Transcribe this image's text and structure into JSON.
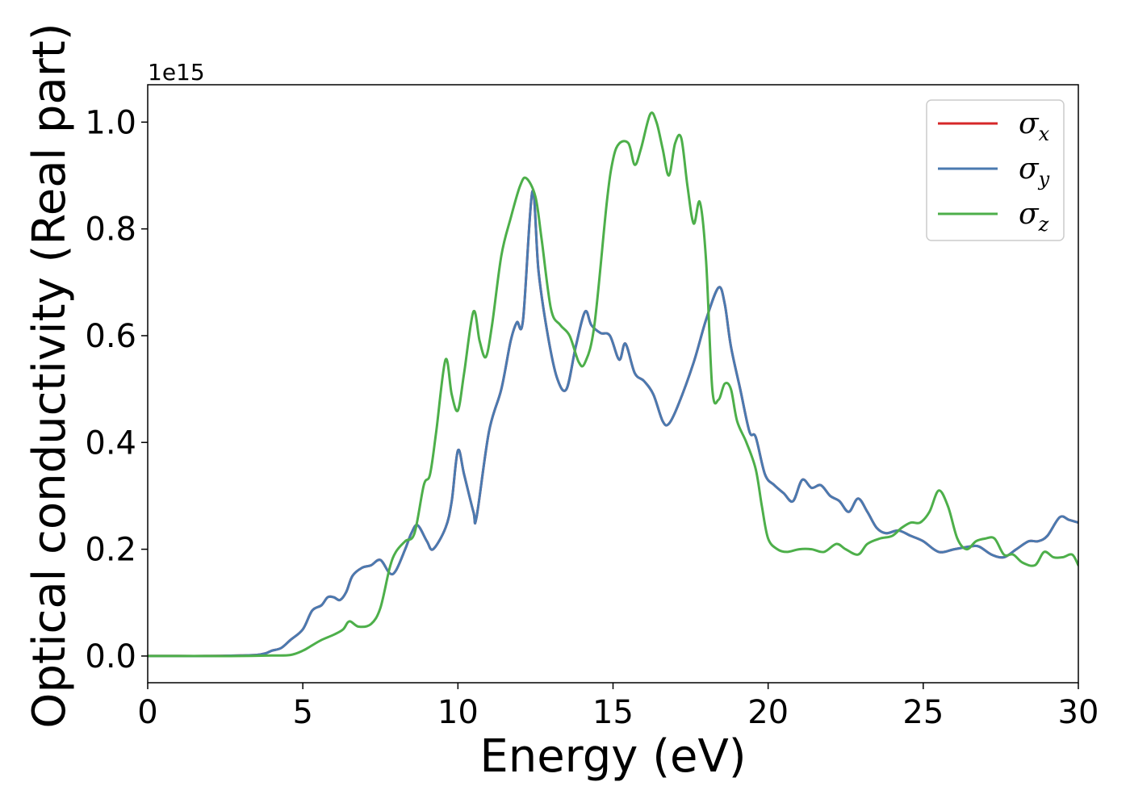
{
  "chart_data": {
    "type": "line",
    "title": "",
    "xlabel": "Energy (eV)",
    "ylabel": "Optical conductivity (Real part)",
    "y_offset_text": "1e15",
    "xlim": [
      0,
      30
    ],
    "ylim": [
      -0.05,
      1.07
    ],
    "x_ticks": [
      0,
      5,
      10,
      15,
      20,
      25,
      30
    ],
    "x_tick_labels": [
      "0",
      "5",
      "10",
      "15",
      "20",
      "25",
      "30"
    ],
    "y_ticks": [
      0.0,
      0.2,
      0.4,
      0.6,
      0.8,
      1.0
    ],
    "y_tick_labels": [
      "0.0",
      "0.2",
      "0.4",
      "0.6",
      "0.8",
      "1.0"
    ],
    "grid": false,
    "legend_position": "top-right",
    "series": [
      {
        "name": "σ",
        "subscript": "x",
        "color": "#d62728",
        "x": [
          0,
          1,
          2,
          3,
          3.5,
          3.8,
          4.0,
          4.3,
          4.6,
          5.0,
          5.3,
          5.6,
          5.8,
          6.0,
          6.2,
          6.4,
          6.6,
          6.9,
          7.2,
          7.5,
          7.8,
          8.0,
          8.3,
          8.5,
          8.7,
          9.0,
          9.2,
          9.6,
          9.8,
          10.0,
          10.2,
          10.5,
          10.6,
          11.0,
          11.4,
          11.7,
          11.9,
          12.1,
          12.4,
          12.6,
          12.9,
          13.2,
          13.5,
          13.8,
          14.1,
          14.3,
          14.6,
          14.9,
          15.2,
          15.4,
          15.7,
          16.0,
          16.3,
          16.6,
          16.8,
          17.1,
          17.6,
          18.0,
          18.4,
          18.6,
          18.8,
          19.1,
          19.4,
          19.6,
          19.9,
          20.2,
          20.5,
          20.8,
          21.1,
          21.4,
          21.7,
          22.0,
          22.3,
          22.6,
          22.9,
          23.2,
          23.5,
          23.8,
          24.2,
          24.6,
          25.0,
          25.5,
          26.0,
          26.5,
          26.8,
          27.2,
          27.6,
          28.0,
          28.4,
          28.7,
          29.0,
          29.4,
          29.7,
          30.0
        ],
        "y": [
          0,
          0,
          0,
          0.001,
          0.002,
          0.005,
          0.01,
          0.015,
          0.03,
          0.05,
          0.085,
          0.095,
          0.11,
          0.11,
          0.105,
          0.12,
          0.15,
          0.165,
          0.17,
          0.18,
          0.155,
          0.16,
          0.2,
          0.23,
          0.245,
          0.215,
          0.2,
          0.24,
          0.29,
          0.385,
          0.34,
          0.27,
          0.26,
          0.42,
          0.5,
          0.59,
          0.625,
          0.63,
          0.87,
          0.72,
          0.6,
          0.52,
          0.5,
          0.58,
          0.645,
          0.62,
          0.605,
          0.6,
          0.555,
          0.585,
          0.53,
          0.515,
          0.49,
          0.44,
          0.435,
          0.47,
          0.55,
          0.63,
          0.69,
          0.66,
          0.58,
          0.5,
          0.42,
          0.41,
          0.34,
          0.32,
          0.305,
          0.29,
          0.33,
          0.315,
          0.32,
          0.3,
          0.29,
          0.27,
          0.295,
          0.27,
          0.24,
          0.23,
          0.235,
          0.225,
          0.215,
          0.195,
          0.2,
          0.205,
          0.205,
          0.19,
          0.185,
          0.2,
          0.215,
          0.215,
          0.225,
          0.26,
          0.255,
          0.25
        ]
      },
      {
        "name": "σ",
        "subscript": "y",
        "color": "#4a7ab0",
        "x": [
          0,
          1,
          2,
          3,
          3.5,
          3.8,
          4.0,
          4.3,
          4.6,
          5.0,
          5.3,
          5.6,
          5.8,
          6.0,
          6.2,
          6.4,
          6.6,
          6.9,
          7.2,
          7.5,
          7.8,
          8.0,
          8.3,
          8.5,
          8.7,
          9.0,
          9.2,
          9.6,
          9.8,
          10.0,
          10.2,
          10.5,
          10.6,
          11.0,
          11.4,
          11.7,
          11.9,
          12.1,
          12.4,
          12.6,
          12.9,
          13.2,
          13.5,
          13.8,
          14.1,
          14.3,
          14.6,
          14.9,
          15.2,
          15.4,
          15.7,
          16.0,
          16.3,
          16.6,
          16.8,
          17.1,
          17.6,
          18.0,
          18.4,
          18.6,
          18.8,
          19.1,
          19.4,
          19.6,
          19.9,
          20.2,
          20.5,
          20.8,
          21.1,
          21.4,
          21.7,
          22.0,
          22.3,
          22.6,
          22.9,
          23.2,
          23.5,
          23.8,
          24.2,
          24.6,
          25.0,
          25.5,
          26.0,
          26.5,
          26.8,
          27.2,
          27.6,
          28.0,
          28.4,
          28.7,
          29.0,
          29.4,
          29.7,
          30.0
        ],
        "y": [
          0,
          0,
          0,
          0.001,
          0.002,
          0.005,
          0.01,
          0.015,
          0.03,
          0.05,
          0.085,
          0.095,
          0.11,
          0.11,
          0.105,
          0.12,
          0.15,
          0.165,
          0.17,
          0.18,
          0.155,
          0.16,
          0.2,
          0.23,
          0.245,
          0.215,
          0.2,
          0.24,
          0.29,
          0.385,
          0.34,
          0.27,
          0.26,
          0.42,
          0.5,
          0.59,
          0.625,
          0.63,
          0.87,
          0.72,
          0.6,
          0.52,
          0.5,
          0.58,
          0.645,
          0.62,
          0.605,
          0.6,
          0.555,
          0.585,
          0.53,
          0.515,
          0.49,
          0.44,
          0.435,
          0.47,
          0.55,
          0.63,
          0.69,
          0.66,
          0.58,
          0.5,
          0.42,
          0.41,
          0.34,
          0.32,
          0.305,
          0.29,
          0.33,
          0.315,
          0.32,
          0.3,
          0.29,
          0.27,
          0.295,
          0.27,
          0.24,
          0.23,
          0.235,
          0.225,
          0.215,
          0.195,
          0.2,
          0.205,
          0.205,
          0.19,
          0.185,
          0.2,
          0.215,
          0.215,
          0.225,
          0.26,
          0.255,
          0.25
        ]
      },
      {
        "name": "σ",
        "subscript": "z",
        "color": "#4daf4a",
        "x": [
          0,
          1,
          2,
          3,
          4,
          4.6,
          5.0,
          5.3,
          5.6,
          6.0,
          6.3,
          6.5,
          6.8,
          7.2,
          7.5,
          7.8,
          8.0,
          8.3,
          8.6,
          8.9,
          9.1,
          9.3,
          9.6,
          9.8,
          10.0,
          10.2,
          10.5,
          10.7,
          10.9,
          11.1,
          11.4,
          11.7,
          12.0,
          12.2,
          12.5,
          12.7,
          13.0,
          13.3,
          13.6,
          13.9,
          14.1,
          14.4,
          14.8,
          15.0,
          15.2,
          15.5,
          15.7,
          15.9,
          16.2,
          16.4,
          16.6,
          16.8,
          17.0,
          17.2,
          17.4,
          17.6,
          17.8,
          18.0,
          18.2,
          18.4,
          18.6,
          18.8,
          19.0,
          19.3,
          19.6,
          19.8,
          20.0,
          20.3,
          20.6,
          21.0,
          21.4,
          21.8,
          22.2,
          22.5,
          22.9,
          23.2,
          23.6,
          24.0,
          24.3,
          24.6,
          24.9,
          25.2,
          25.5,
          25.8,
          26.1,
          26.4,
          26.7,
          27.0,
          27.3,
          27.6,
          27.9,
          28.2,
          28.6,
          28.9,
          29.2,
          29.5,
          29.8,
          30.0
        ],
        "y": [
          0,
          0,
          0,
          0,
          0.001,
          0.002,
          0.01,
          0.02,
          0.03,
          0.04,
          0.05,
          0.065,
          0.055,
          0.06,
          0.09,
          0.165,
          0.195,
          0.215,
          0.23,
          0.32,
          0.34,
          0.42,
          0.555,
          0.49,
          0.46,
          0.53,
          0.645,
          0.59,
          0.56,
          0.62,
          0.75,
          0.82,
          0.88,
          0.895,
          0.86,
          0.78,
          0.65,
          0.62,
          0.6,
          0.55,
          0.55,
          0.62,
          0.85,
          0.93,
          0.96,
          0.96,
          0.92,
          0.95,
          1.015,
          1.0,
          0.95,
          0.9,
          0.96,
          0.97,
          0.88,
          0.81,
          0.85,
          0.74,
          0.5,
          0.48,
          0.51,
          0.5,
          0.44,
          0.4,
          0.35,
          0.28,
          0.22,
          0.2,
          0.195,
          0.2,
          0.2,
          0.195,
          0.21,
          0.2,
          0.19,
          0.21,
          0.22,
          0.225,
          0.24,
          0.25,
          0.25,
          0.27,
          0.31,
          0.28,
          0.22,
          0.2,
          0.215,
          0.22,
          0.22,
          0.19,
          0.19,
          0.175,
          0.17,
          0.195,
          0.185,
          0.185,
          0.19,
          0.17
        ]
      }
    ]
  }
}
